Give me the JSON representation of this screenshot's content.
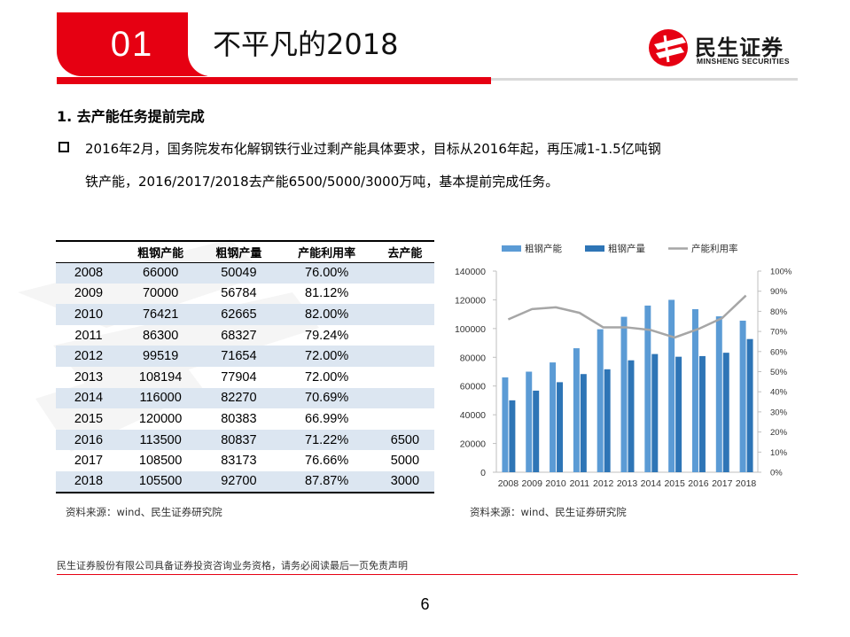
{
  "header": {
    "number": "01",
    "title": "不平凡的2018"
  },
  "logo": {
    "name_cn": "民生证券",
    "name_en": "MINSHENG SECURITIES"
  },
  "section": {
    "heading": "1.   去产能任务提前完成",
    "bullet_line1": "2016年2月，国务院发布化解钢铁行业过剩产能具体要求，目标从2016年起，再压减1-1.5亿吨钢",
    "bullet_line2": "铁产能，2016/2017/2018去产能6500/5000/3000万吨，基本提前完成任务。"
  },
  "table": {
    "headers": [
      "",
      "粗钢产能",
      "粗钢产量",
      "产能利用率",
      "去产能"
    ],
    "rows": [
      [
        "2008",
        "66000",
        "50049",
        "76.00%",
        ""
      ],
      [
        "2009",
        "70000",
        "56784",
        "81.12%",
        ""
      ],
      [
        "2010",
        "76421",
        "62665",
        "82.00%",
        ""
      ],
      [
        "2011",
        "86300",
        "68327",
        "79.24%",
        ""
      ],
      [
        "2012",
        "99519",
        "71654",
        "72.00%",
        ""
      ],
      [
        "2013",
        "108194",
        "77904",
        "72.00%",
        ""
      ],
      [
        "2014",
        "116000",
        "82270",
        "70.69%",
        ""
      ],
      [
        "2015",
        "120000",
        "80383",
        "66.99%",
        ""
      ],
      [
        "2016",
        "113500",
        "80837",
        "71.22%",
        "6500"
      ],
      [
        "2017",
        "108500",
        "83173",
        "76.66%",
        "5000"
      ],
      [
        "2018",
        "105500",
        "92700",
        "87.87%",
        "3000"
      ]
    ],
    "source": "资料来源：wind、民生证券研究院"
  },
  "chart_data": {
    "type": "bar",
    "categories": [
      "2008",
      "2009",
      "2010",
      "2011",
      "2012",
      "2013",
      "2014",
      "2015",
      "2016",
      "2017",
      "2018"
    ],
    "series": [
      {
        "name": "粗钢产能",
        "kind": "bar",
        "axis": "left",
        "color": "#5b9bd5",
        "values": [
          66000,
          70000,
          76421,
          86300,
          99519,
          108194,
          116000,
          120000,
          113500,
          108500,
          105500
        ]
      },
      {
        "name": "粗钢产量",
        "kind": "bar",
        "axis": "left",
        "color": "#2e75b6",
        "values": [
          50049,
          56784,
          62665,
          68327,
          71654,
          77904,
          82270,
          80383,
          80837,
          83173,
          92700
        ]
      },
      {
        "name": "产能利用率",
        "kind": "line",
        "axis": "right",
        "color": "#a6a6a6",
        "values": [
          76.0,
          81.12,
          82.0,
          79.24,
          72.0,
          72.0,
          70.69,
          66.99,
          71.22,
          76.66,
          87.87
        ]
      }
    ],
    "left_ticks": [
      "0",
      "20000",
      "40000",
      "60000",
      "80000",
      "100000",
      "120000",
      "140000"
    ],
    "right_ticks": [
      "0%",
      "10%",
      "20%",
      "30%",
      "40%",
      "50%",
      "60%",
      "70%",
      "80%",
      "90%",
      "100%"
    ],
    "ylim_left": [
      0,
      140000
    ],
    "ylim_right": [
      0,
      100
    ],
    "legend_position": "top",
    "source": "资料来源：wind、民生证券研究院"
  },
  "footer": {
    "disclaimer": "民生证券股份有限公司具备证券投资咨询业务资格，请务必阅读最后一页免责声明",
    "page_number": "6"
  },
  "colors": {
    "brand_red": "#e60012",
    "table_shade": "#dce6f1"
  }
}
